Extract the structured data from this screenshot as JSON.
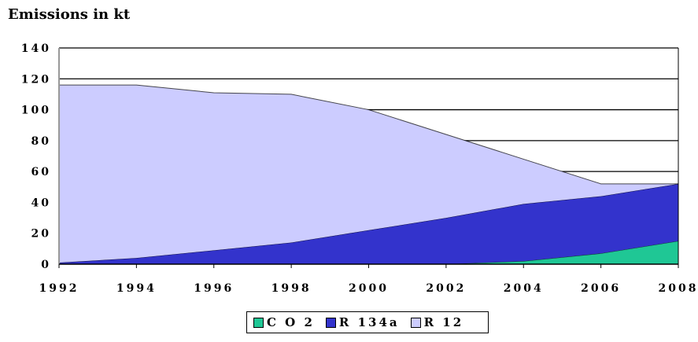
{
  "chart_data": {
    "type": "area",
    "stacked": true,
    "title": "Emissions in kt",
    "x": [
      1992,
      1994,
      1996,
      1998,
      2000,
      2002,
      2004,
      2006,
      2008
    ],
    "x_tick_labels": [
      "1992",
      "1994",
      "1996",
      "1998",
      "2000",
      "2002",
      "2004",
      "2006",
      "2008"
    ],
    "y_tick_labels": [
      "0",
      "20",
      "40",
      "60",
      "80",
      "100",
      "120",
      "140"
    ],
    "ylim": [
      0,
      140
    ],
    "xlim": [
      1992,
      2008
    ],
    "grid": "horizontal",
    "legend_position": "bottom",
    "series": [
      {
        "name": "C O 2",
        "color": "#1fc795",
        "values": [
          0,
          0,
          0,
          0,
          0,
          0,
          2,
          7,
          15
        ]
      },
      {
        "name": "R 134a",
        "color": "#3333cc",
        "values": [
          1,
          4,
          9,
          14,
          22,
          30,
          37,
          37,
          37
        ]
      },
      {
        "name": "R 12",
        "color": "#ccccff",
        "values": [
          115,
          112,
          102,
          96,
          78,
          54,
          29,
          8,
          0
        ]
      }
    ]
  }
}
